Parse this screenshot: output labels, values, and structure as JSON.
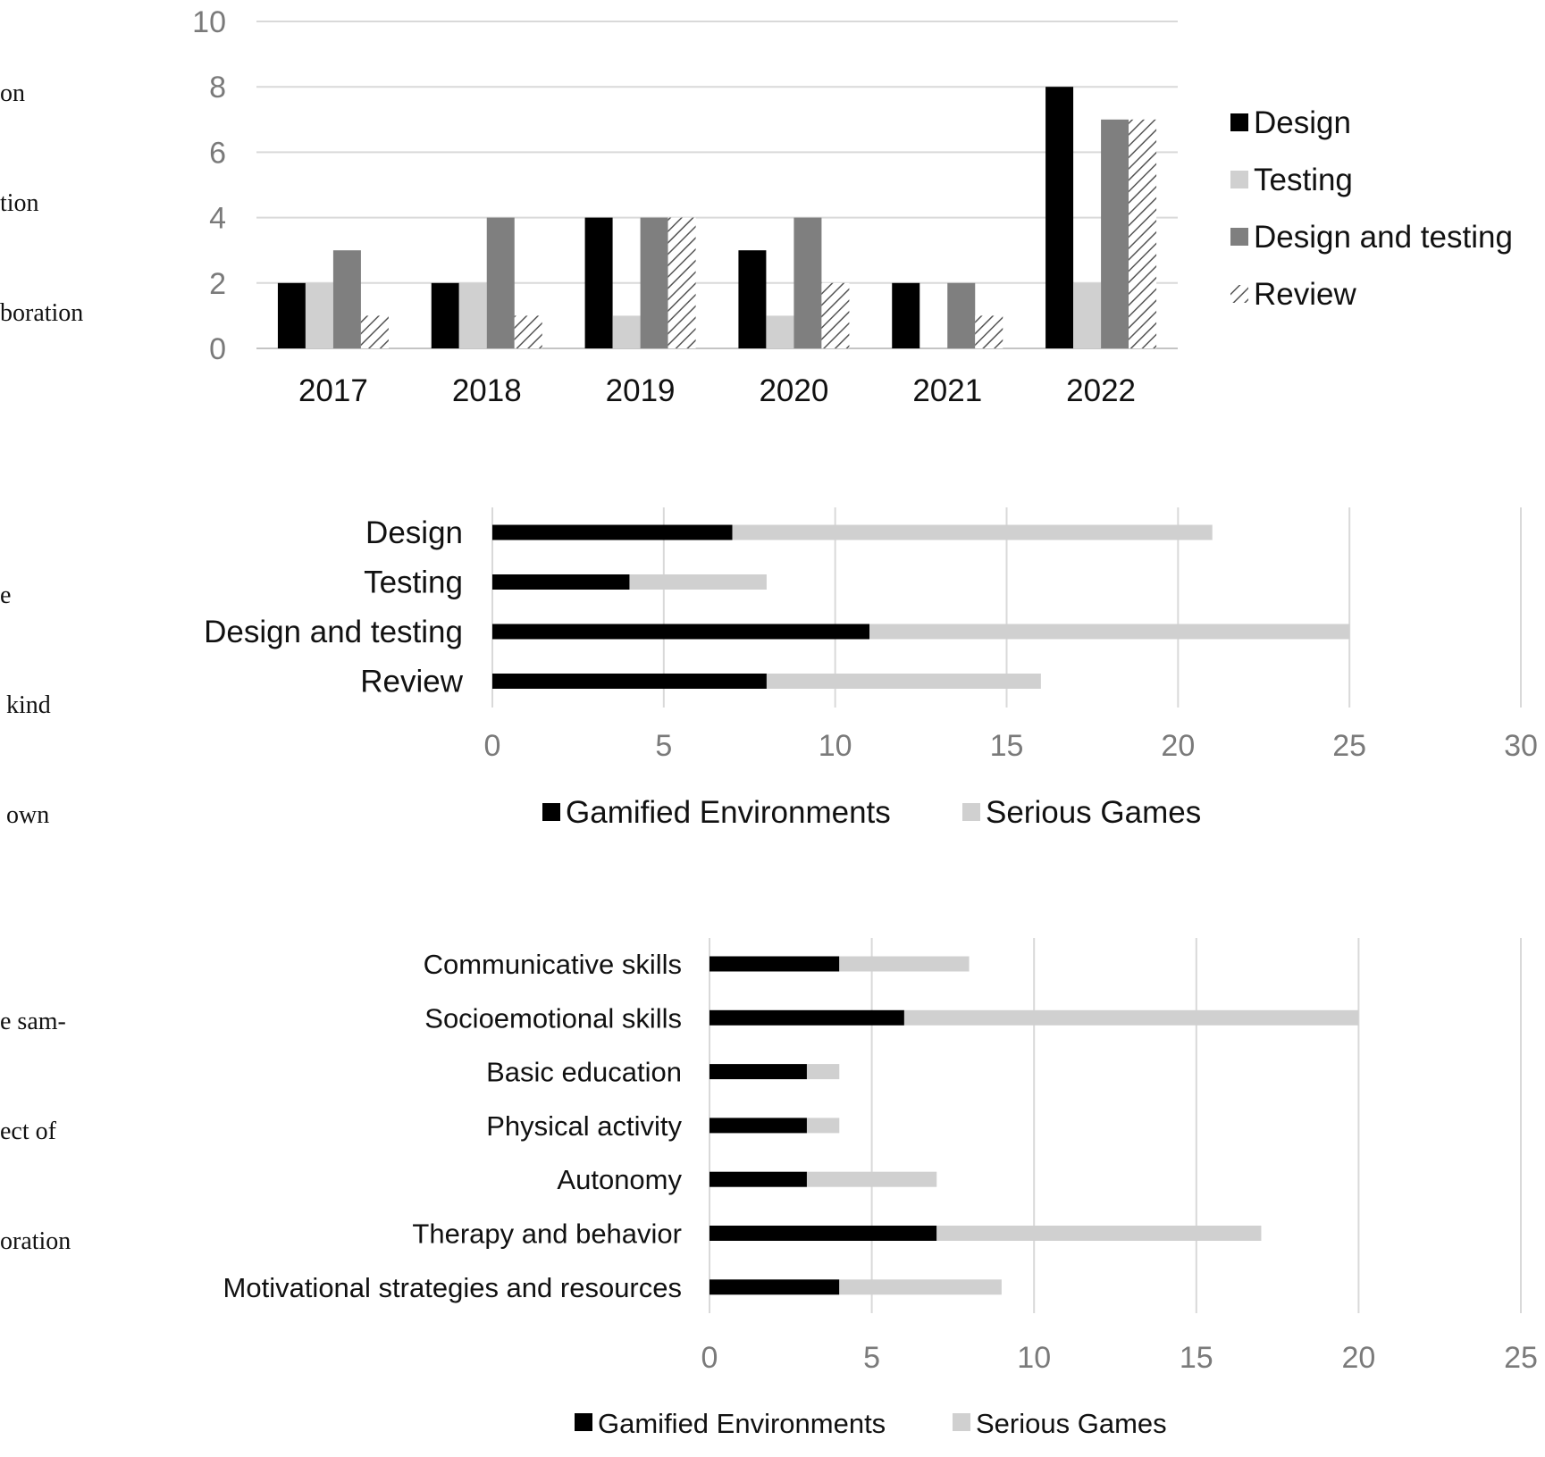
{
  "side_captions": [
    {
      "lines": [
        "on",
        "tion",
        "boration"
      ]
    },
    {
      "lines": [
        "e",
        " kind",
        " own"
      ]
    },
    {
      "lines": [
        "e sam-",
        "ect of",
        "oration"
      ]
    }
  ],
  "chart_data": [
    {
      "type": "bar",
      "title": "",
      "xlabel": "",
      "ylabel": "",
      "categories": [
        "2017",
        "2018",
        "2019",
        "2020",
        "2021",
        "2022"
      ],
      "ylim": [
        0,
        10
      ],
      "yticks": [
        "0",
        "2",
        "4",
        "6",
        "8",
        "10"
      ],
      "grid": true,
      "legend_position": "right",
      "series": [
        {
          "name": "Design",
          "values": [
            2,
            2,
            4,
            3,
            2,
            8
          ],
          "color": "#000000",
          "pattern": "solid"
        },
        {
          "name": "Testing",
          "values": [
            2,
            2,
            1,
            1,
            0,
            2
          ],
          "color": "#d0d0d0",
          "pattern": "solid"
        },
        {
          "name": "Design and testing",
          "values": [
            3,
            4,
            4,
            4,
            2,
            7
          ],
          "color": "#7f7f7f",
          "pattern": "solid"
        },
        {
          "name": "Review",
          "values": [
            1,
            1,
            4,
            2,
            1,
            7
          ],
          "color": "#555555",
          "pattern": "hatch"
        }
      ]
    },
    {
      "type": "bar",
      "orientation": "horizontal",
      "stacked": true,
      "title": "",
      "categories": [
        "Design",
        "Testing",
        "Design and testing",
        "Review"
      ],
      "xlim": [
        0,
        30
      ],
      "xticks": [
        "0",
        "5",
        "10",
        "15",
        "20",
        "25",
        "30"
      ],
      "grid": true,
      "legend_position": "bottom",
      "series": [
        {
          "name": "Gamified Environments",
          "values": [
            7,
            4,
            11,
            8
          ],
          "color": "#000000"
        },
        {
          "name": "Serious Games",
          "values": [
            14,
            4,
            14,
            8
          ],
          "color": "#d0d0d0"
        }
      ]
    },
    {
      "type": "bar",
      "orientation": "horizontal",
      "stacked": true,
      "title": "",
      "categories": [
        "Communicative skills",
        "Socioemotional skills",
        "Basic education",
        "Physical activity",
        "Autonomy",
        "Therapy and behavior",
        "Motivational strategies and resources"
      ],
      "xlim": [
        0,
        25
      ],
      "xticks": [
        "0",
        "5",
        "10",
        "15",
        "20",
        "25"
      ],
      "grid": true,
      "legend_position": "bottom",
      "series": [
        {
          "name": "Gamified Environments",
          "values": [
            4,
            6,
            3,
            3,
            3,
            7,
            4
          ],
          "color": "#000000"
        },
        {
          "name": "Serious Games",
          "values": [
            4,
            14,
            1,
            1,
            4,
            10,
            5
          ],
          "color": "#d0d0d0"
        }
      ]
    }
  ]
}
